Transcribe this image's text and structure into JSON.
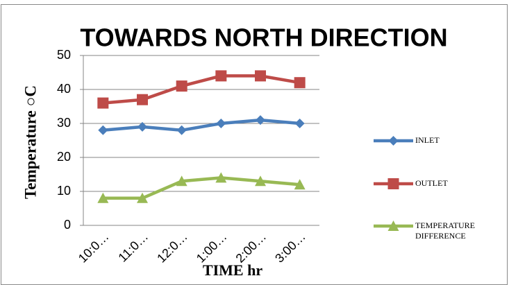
{
  "chart_data": {
    "type": "line",
    "title": "TOWARDS NORTH DIRECTION",
    "x_label": "TIME  hr",
    "y_label": "Temperature ○C",
    "categories": [
      "10:0…",
      "11:0…",
      "12:0…",
      "1:00…",
      "2:00…",
      "3:00…"
    ],
    "series": [
      {
        "name": "INLET",
        "color": "#4a7ebb",
        "marker": "diamond",
        "values": [
          28,
          29,
          28,
          30,
          31,
          30
        ]
      },
      {
        "name": "OUTLET",
        "color": "#be4b48",
        "marker": "square",
        "values": [
          36,
          37,
          41,
          44,
          44,
          42
        ]
      },
      {
        "name": "TEMPERATURE DIFFERENCE",
        "color": "#98b954",
        "marker": "triangle",
        "values": [
          8,
          8,
          13,
          14,
          13,
          12
        ]
      }
    ],
    "ylim": [
      0,
      50
    ],
    "yticks": [
      0,
      10,
      20,
      30,
      40,
      50
    ],
    "grid": true,
    "legend": "right"
  }
}
